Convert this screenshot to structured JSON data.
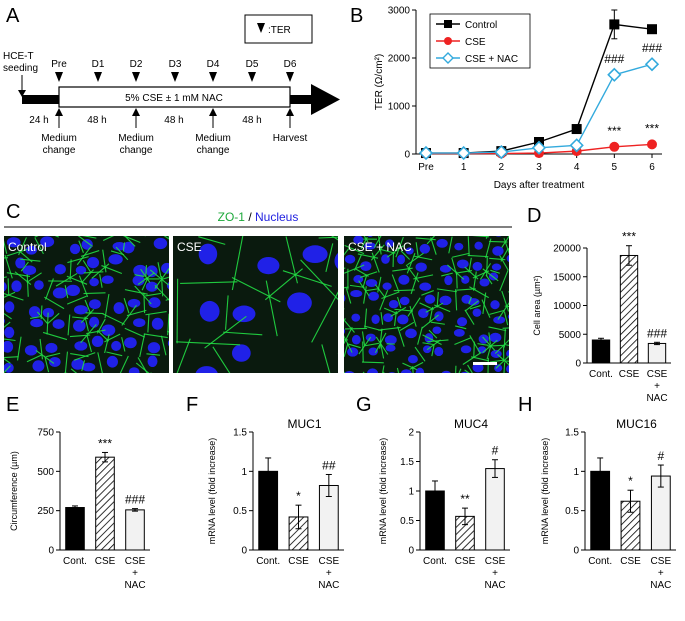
{
  "panel_labels": {
    "A": "A",
    "B": "B",
    "C": "C",
    "D": "D",
    "E": "E",
    "F": "F",
    "G": "G",
    "H": "H"
  },
  "panel_a": {
    "ter_legend": ":TER",
    "seeding": "HCE-T seeding",
    "seeding_l1": "HCE-T",
    "seeding_l2": "seeding",
    "days": [
      "Pre",
      "D1",
      "D2",
      "D3",
      "D4",
      "D5",
      "D6"
    ],
    "treatment": "5% CSE ± 1 mM NAC",
    "intervals": [
      "24 h",
      "48 h",
      "48 h",
      "48 h"
    ],
    "events": [
      "Medium change",
      "Medium change",
      "Medium change",
      "Harvest"
    ],
    "event_l1": [
      "Medium",
      "Medium",
      "Medium",
      "Harvest"
    ],
    "event_l2": [
      "change",
      "change",
      "change",
      ""
    ]
  },
  "panel_c": {
    "title_zo": "ZO-1",
    "title_sep": " / ",
    "title_nuc": "Nucleus",
    "images": [
      "Control",
      "CSE",
      "CSE + NAC"
    ],
    "colors": {
      "zo1": "#22dd44",
      "nucleus": "#2222ff",
      "background": "#0a1a0e"
    }
  },
  "chart_data": [
    {
      "panel": "B",
      "type": "line",
      "ylabel": "TER (Ω/cm²)",
      "xlabel": "Days after treatment",
      "categories": [
        "Pre",
        "1",
        "2",
        "3",
        "4",
        "5",
        "6"
      ],
      "ylim": [
        0,
        3000
      ],
      "yticks": [
        0,
        1000,
        2000,
        3000
      ],
      "legend_position": "top-left",
      "series": [
        {
          "name": "Control",
          "color": "#000000",
          "marker": "square",
          "values": [
            20,
            20,
            60,
            250,
            520,
            2700,
            2600
          ],
          "err": [
            0,
            0,
            0,
            0,
            0,
            300,
            0
          ]
        },
        {
          "name": "CSE",
          "color": "#ee2222",
          "marker": "circle",
          "values": [
            10,
            10,
            10,
            20,
            60,
            150,
            200
          ],
          "err": [
            0,
            0,
            0,
            0,
            0,
            0,
            0
          ]
        },
        {
          "name": "CSE + NAC",
          "color": "#33aadd",
          "marker": "diamond",
          "values": [
            20,
            20,
            40,
            130,
            180,
            1650,
            1870
          ],
          "err": [
            0,
            0,
            0,
            0,
            0,
            0,
            0
          ]
        }
      ],
      "annotations": [
        {
          "x": "5",
          "text": "###",
          "series": "CSE + NAC"
        },
        {
          "x": "6",
          "text": "###",
          "series": "CSE + NAC"
        },
        {
          "x": "5",
          "text": "***",
          "series": "CSE"
        },
        {
          "x": "6",
          "text": "***",
          "series": "CSE"
        }
      ]
    },
    {
      "panel": "D",
      "type": "bar",
      "ylabel": "Cell area (µm²)",
      "categories": [
        "Cont.",
        "CSE",
        "CSE + NAC"
      ],
      "category_lines": [
        [
          "Cont."
        ],
        [
          "CSE"
        ],
        [
          "CSE",
          "+",
          "NAC"
        ]
      ],
      "values": [
        4000,
        18700,
        3400
      ],
      "err": [
        300,
        1700,
        200
      ],
      "sig": [
        "",
        "***",
        "###"
      ],
      "ylim": [
        0,
        20000
      ],
      "yticks": [
        0,
        5000,
        10000,
        15000,
        20000
      ],
      "title": ""
    },
    {
      "panel": "E",
      "type": "bar",
      "ylabel": "Circumference (µm)",
      "categories": [
        "Cont.",
        "CSE",
        "CSE + NAC"
      ],
      "category_lines": [
        [
          "Cont."
        ],
        [
          "CSE"
        ],
        [
          "CSE",
          "+",
          "NAC"
        ]
      ],
      "values": [
        270,
        590,
        255
      ],
      "err": [
        10,
        30,
        8
      ],
      "sig": [
        "",
        "***",
        "###"
      ],
      "ylim": [
        0,
        750
      ],
      "yticks": [
        0,
        250,
        500,
        750
      ],
      "title": ""
    },
    {
      "panel": "F",
      "type": "bar",
      "ylabel": "mRNA level (fold increase)",
      "categories": [
        "Cont.",
        "CSE",
        "CSE + NAC"
      ],
      "category_lines": [
        [
          "Cont."
        ],
        [
          "CSE"
        ],
        [
          "CSE",
          "+",
          "NAC"
        ]
      ],
      "values": [
        1.0,
        0.42,
        0.82
      ],
      "err": [
        0.17,
        0.15,
        0.14
      ],
      "sig": [
        "",
        "*",
        "##"
      ],
      "ylim": [
        0,
        1.5
      ],
      "yticks": [
        0,
        0.5,
        1,
        1.5
      ],
      "yticklabels": [
        "0",
        "0.5",
        "1",
        "1.5"
      ],
      "title": "MUC1"
    },
    {
      "panel": "G",
      "type": "bar",
      "ylabel": "mRNA level (fold increase)",
      "categories": [
        "Cont.",
        "CSE",
        "CSE + NAC"
      ],
      "category_lines": [
        [
          "Cont."
        ],
        [
          "CSE"
        ],
        [
          "CSE",
          "+",
          "NAC"
        ]
      ],
      "values": [
        1.0,
        0.57,
        1.38
      ],
      "err": [
        0.17,
        0.14,
        0.15
      ],
      "sig": [
        "",
        "**",
        "#"
      ],
      "ylim": [
        0,
        2
      ],
      "yticks": [
        0,
        0.5,
        1,
        1.5,
        2
      ],
      "yticklabels": [
        "0",
        "0.5",
        "1",
        "1.5",
        "2"
      ],
      "title": "MUC4"
    },
    {
      "panel": "H",
      "type": "bar",
      "ylabel": "mRNA level (fold increase)",
      "categories": [
        "Cont.",
        "CSE",
        "CSE + NAC"
      ],
      "category_lines": [
        [
          "Cont."
        ],
        [
          "CSE"
        ],
        [
          "CSE",
          "+",
          "NAC"
        ]
      ],
      "values": [
        1.0,
        0.62,
        0.94
      ],
      "err": [
        0.17,
        0.14,
        0.14
      ],
      "sig": [
        "",
        "*",
        "#"
      ],
      "ylim": [
        0,
        1.5
      ],
      "yticks": [
        0,
        0.5,
        1,
        1.5
      ],
      "yticklabels": [
        "0",
        "0.5",
        "1",
        "1.5"
      ],
      "title": "MUC16"
    }
  ]
}
